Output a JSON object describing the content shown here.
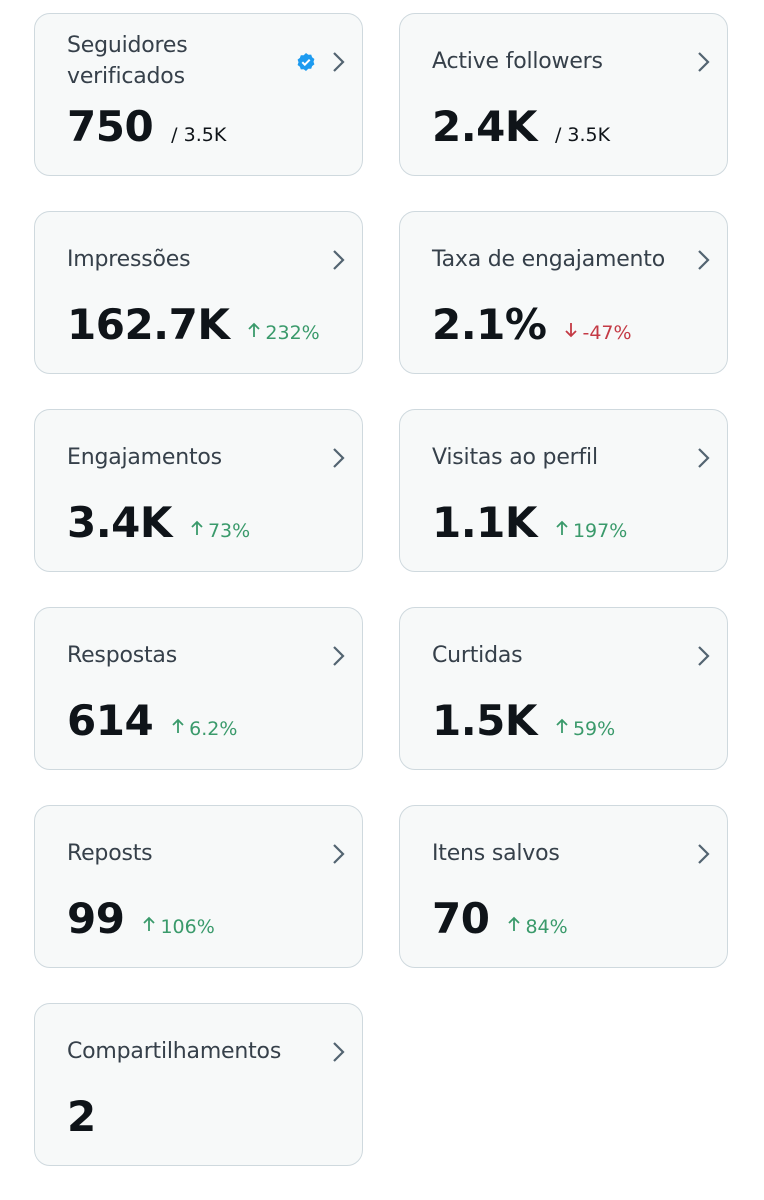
{
  "cards": [
    {
      "label": "Seguidores verificados",
      "value": "750",
      "total": "/ 3.5K",
      "verified": true
    },
    {
      "label": "Active followers",
      "value": "2.4K",
      "total": "/ 3.5K"
    },
    {
      "label": "Impressões",
      "value": "162.7K",
      "change": "232%",
      "trend": "up"
    },
    {
      "label": "Taxa de engajamento",
      "value": "2.1%",
      "change": "-47%",
      "trend": "down"
    },
    {
      "label": "Engajamentos",
      "value": "3.4K",
      "change": "73%",
      "trend": "up"
    },
    {
      "label": "Visitas ao perfil",
      "value": "1.1K",
      "change": "197%",
      "trend": "up"
    },
    {
      "label": "Respostas",
      "value": "614",
      "change": "6.2%",
      "trend": "up"
    },
    {
      "label": "Curtidas",
      "value": "1.5K",
      "change": "59%",
      "trend": "up"
    },
    {
      "label": "Reposts",
      "value": "99",
      "change": "106%",
      "trend": "up"
    },
    {
      "label": "Itens salvos",
      "value": "70",
      "change": "84%",
      "trend": "up"
    },
    {
      "label": "Compartilhamentos",
      "value": "2"
    }
  ]
}
